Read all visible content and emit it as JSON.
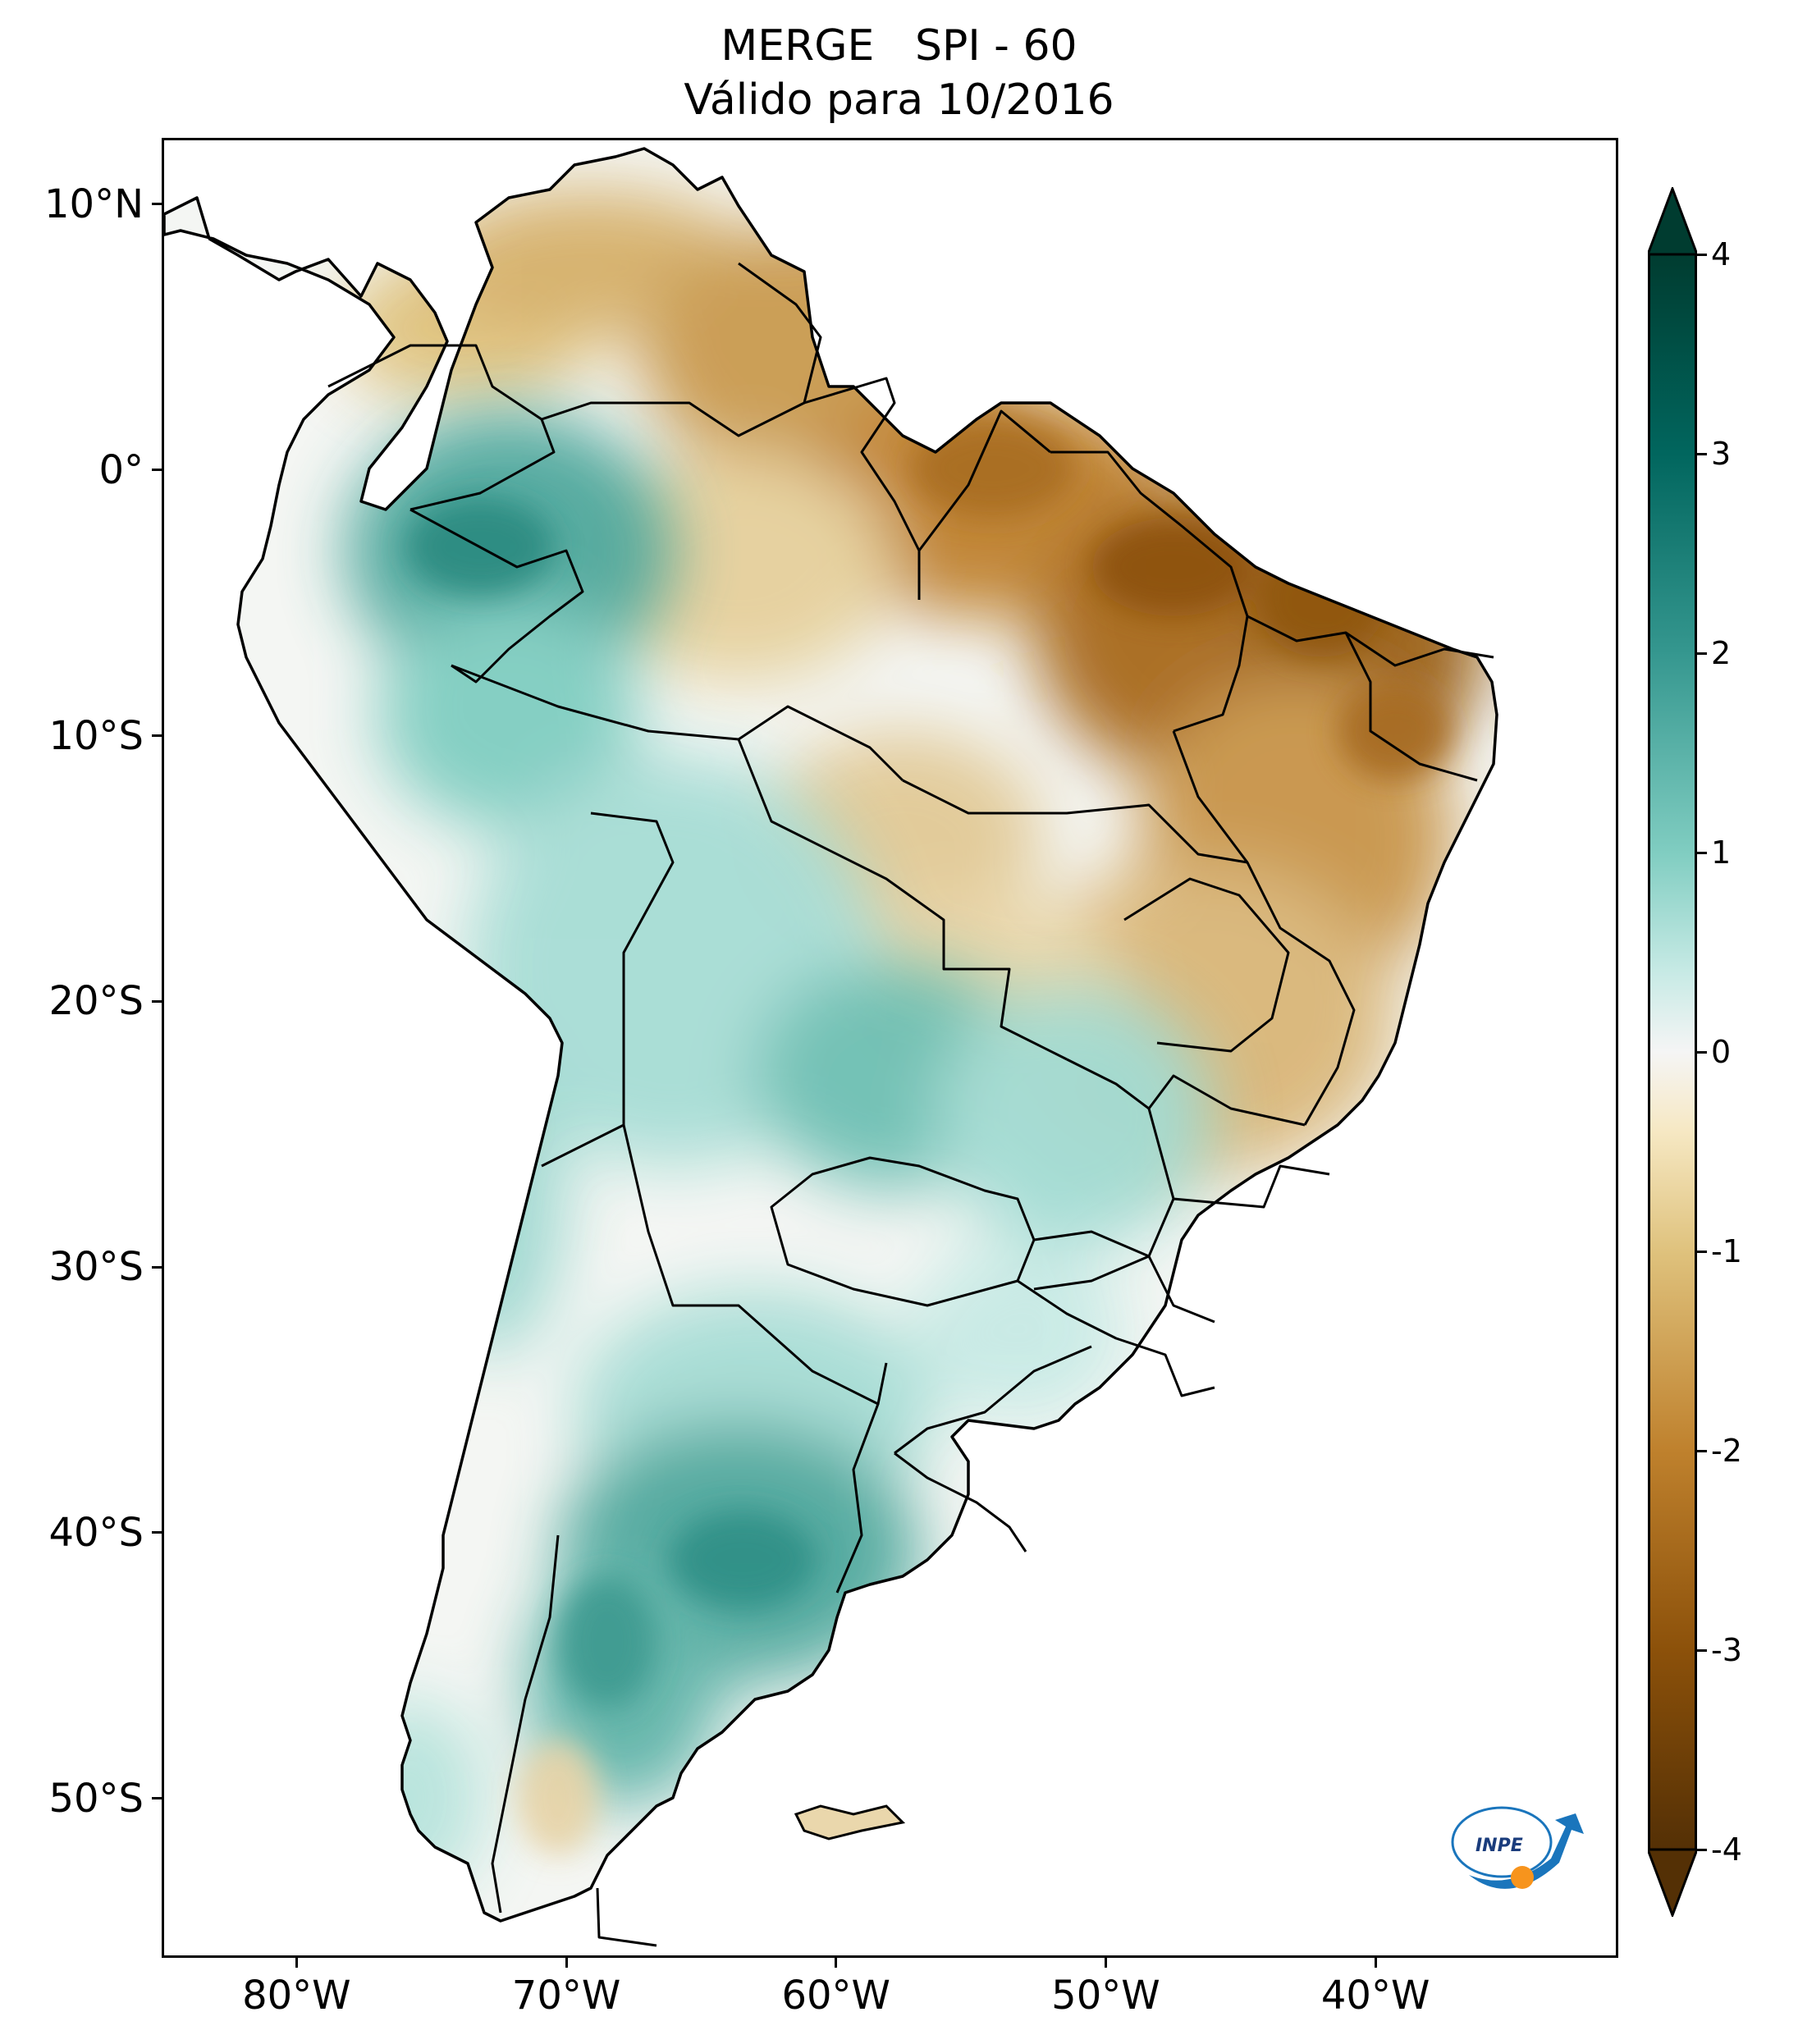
{
  "title": {
    "line1": "MERGE   SPI - 60",
    "line2": "Válido para 10/2016"
  },
  "map": {
    "extent_lon": [
      -85,
      -31
    ],
    "extent_lat": [
      -56,
      12.5
    ],
    "lat_ticks": [
      {
        "value": 10,
        "label": "10°N"
      },
      {
        "value": 0,
        "label": "0°"
      },
      {
        "value": -10,
        "label": "10°S"
      },
      {
        "value": -20,
        "label": "20°S"
      },
      {
        "value": -30,
        "label": "30°S"
      },
      {
        "value": -40,
        "label": "40°S"
      },
      {
        "value": -50,
        "label": "50°S"
      }
    ],
    "lon_ticks": [
      {
        "value": -80,
        "label": "80°W"
      },
      {
        "value": -70,
        "label": "70°W"
      },
      {
        "value": -60,
        "label": "60°W"
      },
      {
        "value": -50,
        "label": "50°W"
      },
      {
        "value": -40,
        "label": "40°W"
      }
    ]
  },
  "colorbar": {
    "min": -4,
    "max": 4,
    "ticks": [
      {
        "value": 4,
        "label": "4"
      },
      {
        "value": 3,
        "label": "3"
      },
      {
        "value": 2,
        "label": "2"
      },
      {
        "value": 1,
        "label": "1"
      },
      {
        "value": 0,
        "label": "0"
      },
      {
        "value": -1,
        "label": "-1"
      },
      {
        "value": -2,
        "label": "-2"
      },
      {
        "value": -3,
        "label": "-3"
      },
      {
        "value": -4,
        "label": "-4"
      }
    ],
    "colors": {
      "dry_extreme": "#543005",
      "dry_strong": "#8c510a",
      "dry_moderate": "#bf812d",
      "dry_mild": "#dfc27d",
      "dry_slight": "#f6e8c3",
      "neutral": "#f5f5f5",
      "wet_slight": "#c7eae5",
      "wet_mild": "#80cdc1",
      "wet_moderate": "#35978f",
      "wet_strong": "#01665e",
      "wet_extreme": "#003c30"
    }
  },
  "logo": {
    "text": "INPE"
  }
}
